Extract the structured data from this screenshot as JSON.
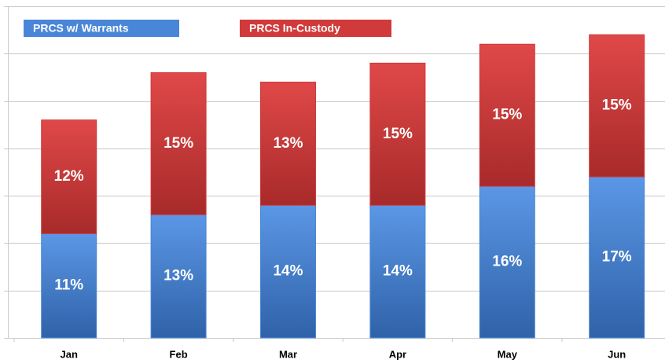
{
  "chart_data": {
    "type": "stacked_bar",
    "categories": [
      "Jan",
      "Feb",
      "Mar",
      "Apr",
      "May",
      "Jun"
    ],
    "series": [
      {
        "name": "PRCS w/ Warrants",
        "color": "#4a86d8",
        "values": [
          11,
          13,
          14,
          14,
          16,
          17
        ],
        "value_labels": [
          "11%",
          "13%",
          "14%",
          "14%",
          "16%",
          "17%"
        ]
      },
      {
        "name": "PRCS In-Custody",
        "color": "#d03a3a",
        "values": [
          12,
          15,
          13,
          15,
          15,
          15
        ],
        "value_labels": [
          "12%",
          "15%",
          "13%",
          "15%",
          "15%",
          "15%"
        ]
      }
    ],
    "ylim": [
      0,
      35
    ],
    "yticks": [
      0,
      5,
      10,
      15,
      20,
      25,
      30,
      35
    ],
    "grid": true
  }
}
